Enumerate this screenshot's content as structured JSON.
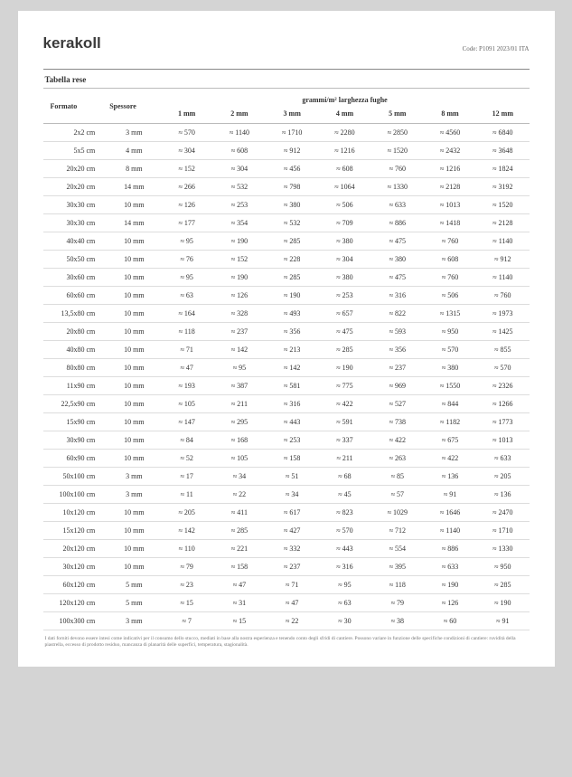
{
  "brand": "kerakoll",
  "code": "Code: P1091 2023/01 ITA",
  "section_title": "Tabella rese",
  "columns": {
    "formato": "Formato",
    "spessore": "Spessore",
    "group_label": "grammi/m² larghezza fughe",
    "widths": [
      "1 mm",
      "2 mm",
      "3 mm",
      "4 mm",
      "5 mm",
      "8 mm",
      "12 mm"
    ]
  },
  "rows": [
    {
      "formato": "2x2 cm",
      "spessore": "3 mm",
      "v": [
        "≈ 570",
        "≈ 1140",
        "≈ 1710",
        "≈ 2280",
        "≈ 2850",
        "≈ 4560",
        "≈ 6840"
      ]
    },
    {
      "formato": "5x5 cm",
      "spessore": "4 mm",
      "v": [
        "≈ 304",
        "≈ 608",
        "≈ 912",
        "≈ 1216",
        "≈ 1520",
        "≈ 2432",
        "≈ 3648"
      ]
    },
    {
      "formato": "20x20 cm",
      "spessore": "8 mm",
      "v": [
        "≈ 152",
        "≈ 304",
        "≈ 456",
        "≈ 608",
        "≈ 760",
        "≈ 1216",
        "≈ 1824"
      ]
    },
    {
      "formato": "20x20 cm",
      "spessore": "14 mm",
      "v": [
        "≈ 266",
        "≈ 532",
        "≈ 798",
        "≈ 1064",
        "≈ 1330",
        "≈ 2128",
        "≈ 3192"
      ]
    },
    {
      "formato": "30x30 cm",
      "spessore": "10 mm",
      "v": [
        "≈ 126",
        "≈ 253",
        "≈ 380",
        "≈ 506",
        "≈ 633",
        "≈ 1013",
        "≈ 1520"
      ]
    },
    {
      "formato": "30x30 cm",
      "spessore": "14 mm",
      "v": [
        "≈ 177",
        "≈ 354",
        "≈ 532",
        "≈ 709",
        "≈ 886",
        "≈ 1418",
        "≈ 2128"
      ]
    },
    {
      "formato": "40x40 cm",
      "spessore": "10 mm",
      "v": [
        "≈ 95",
        "≈ 190",
        "≈ 285",
        "≈ 380",
        "≈ 475",
        "≈ 760",
        "≈ 1140"
      ]
    },
    {
      "formato": "50x50 cm",
      "spessore": "10 mm",
      "v": [
        "≈ 76",
        "≈ 152",
        "≈ 228",
        "≈ 304",
        "≈ 380",
        "≈ 608",
        "≈ 912"
      ]
    },
    {
      "formato": "30x60 cm",
      "spessore": "10 mm",
      "v": [
        "≈ 95",
        "≈ 190",
        "≈ 285",
        "≈ 380",
        "≈ 475",
        "≈ 760",
        "≈ 1140"
      ]
    },
    {
      "formato": "60x60 cm",
      "spessore": "10 mm",
      "v": [
        "≈ 63",
        "≈ 126",
        "≈ 190",
        "≈ 253",
        "≈ 316",
        "≈ 506",
        "≈ 760"
      ]
    },
    {
      "formato": "13,5x80 cm",
      "spessore": "10 mm",
      "v": [
        "≈ 164",
        "≈ 328",
        "≈ 493",
        "≈ 657",
        "≈ 822",
        "≈ 1315",
        "≈ 1973"
      ]
    },
    {
      "formato": "20x80 cm",
      "spessore": "10 mm",
      "v": [
        "≈ 118",
        "≈ 237",
        "≈ 356",
        "≈ 475",
        "≈ 593",
        "≈ 950",
        "≈ 1425"
      ]
    },
    {
      "formato": "40x80 cm",
      "spessore": "10 mm",
      "v": [
        "≈ 71",
        "≈ 142",
        "≈ 213",
        "≈ 285",
        "≈ 356",
        "≈ 570",
        "≈ 855"
      ]
    },
    {
      "formato": "80x80 cm",
      "spessore": "10 mm",
      "v": [
        "≈ 47",
        "≈ 95",
        "≈ 142",
        "≈ 190",
        "≈ 237",
        "≈ 380",
        "≈ 570"
      ]
    },
    {
      "formato": "11x90 cm",
      "spessore": "10 mm",
      "v": [
        "≈ 193",
        "≈ 387",
        "≈ 581",
        "≈ 775",
        "≈ 969",
        "≈ 1550",
        "≈ 2326"
      ]
    },
    {
      "formato": "22,5x90 cm",
      "spessore": "10 mm",
      "v": [
        "≈ 105",
        "≈ 211",
        "≈ 316",
        "≈ 422",
        "≈ 527",
        "≈ 844",
        "≈ 1266"
      ]
    },
    {
      "formato": "15x90 cm",
      "spessore": "10 mm",
      "v": [
        "≈ 147",
        "≈ 295",
        "≈ 443",
        "≈ 591",
        "≈ 738",
        "≈ 1182",
        "≈ 1773"
      ]
    },
    {
      "formato": "30x90 cm",
      "spessore": "10 mm",
      "v": [
        "≈ 84",
        "≈ 168",
        "≈ 253",
        "≈ 337",
        "≈ 422",
        "≈ 675",
        "≈ 1013"
      ]
    },
    {
      "formato": "60x90 cm",
      "spessore": "10 mm",
      "v": [
        "≈ 52",
        "≈ 105",
        "≈ 158",
        "≈ 211",
        "≈ 263",
        "≈ 422",
        "≈ 633"
      ]
    },
    {
      "formato": "50x100 cm",
      "spessore": "3 mm",
      "v": [
        "≈ 17",
        "≈ 34",
        "≈ 51",
        "≈ 68",
        "≈ 85",
        "≈ 136",
        "≈ 205"
      ]
    },
    {
      "formato": "100x100 cm",
      "spessore": "3 mm",
      "v": [
        "≈ 11",
        "≈ 22",
        "≈ 34",
        "≈ 45",
        "≈ 57",
        "≈ 91",
        "≈ 136"
      ]
    },
    {
      "formato": "10x120 cm",
      "spessore": "10 mm",
      "v": [
        "≈ 205",
        "≈ 411",
        "≈ 617",
        "≈ 823",
        "≈ 1029",
        "≈ 1646",
        "≈ 2470"
      ]
    },
    {
      "formato": "15x120 cm",
      "spessore": "10 mm",
      "v": [
        "≈ 142",
        "≈ 285",
        "≈ 427",
        "≈ 570",
        "≈ 712",
        "≈ 1140",
        "≈ 1710"
      ]
    },
    {
      "formato": "20x120 cm",
      "spessore": "10 mm",
      "v": [
        "≈ 110",
        "≈ 221",
        "≈ 332",
        "≈ 443",
        "≈ 554",
        "≈ 886",
        "≈ 1330"
      ]
    },
    {
      "formato": "30x120 cm",
      "spessore": "10 mm",
      "v": [
        "≈ 79",
        "≈ 158",
        "≈ 237",
        "≈ 316",
        "≈ 395",
        "≈ 633",
        "≈ 950"
      ]
    },
    {
      "formato": "60x120 cm",
      "spessore": "5 mm",
      "v": [
        "≈ 23",
        "≈ 47",
        "≈ 71",
        "≈ 95",
        "≈ 118",
        "≈ 190",
        "≈ 285"
      ]
    },
    {
      "formato": "120x120 cm",
      "spessore": "5 mm",
      "v": [
        "≈ 15",
        "≈ 31",
        "≈ 47",
        "≈ 63",
        "≈ 79",
        "≈ 126",
        "≈ 190"
      ]
    },
    {
      "formato": "100x300 cm",
      "spessore": "3 mm",
      "v": [
        "≈ 7",
        "≈ 15",
        "≈ 22",
        "≈ 30",
        "≈ 38",
        "≈ 60",
        "≈ 91"
      ]
    }
  ],
  "footnote": "I dati forniti devono essere intesi come indicativi per il consumo dello stucco, mediati in base alla nostra esperienza e tenendo conto degli sfridi di cantiere. Possono variare in funzione delle specifiche condizioni di cantiere: ruvidità della piastrella, eccesso di prodotto residuo, mancanza di planarità delle superfici, temperatura, stagionalità."
}
